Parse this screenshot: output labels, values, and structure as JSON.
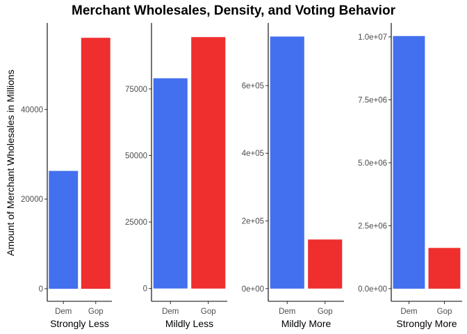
{
  "chart_data": {
    "type": "bar",
    "title": "Merchant Wholesales, Density, and Voting Behavior",
    "ylabel": "Amount of Merchant Wholesales in Millions",
    "colors": {
      "Dem": "#4370ee",
      "Gop": "#ef2e2e"
    },
    "panels": [
      {
        "xlabel": "Strongly Less",
        "categories": [
          "Dem",
          "Gop"
        ],
        "values": [
          26300,
          56000
        ],
        "ylim": [
          -2800,
          59300
        ],
        "ticks": [
          0,
          20000,
          40000
        ],
        "tick_labels": [
          "0",
          "20000",
          "40000"
        ]
      },
      {
        "xlabel": "Mildly Less",
        "categories": [
          "Dem",
          "Gop"
        ],
        "values": [
          79000,
          94500
        ],
        "ylim": [
          -4800,
          99800
        ],
        "ticks": [
          0,
          25000,
          50000,
          75000
        ],
        "tick_labels": [
          "0",
          "25000",
          "50000",
          "75000"
        ]
      },
      {
        "xlabel": "Mildly More",
        "categories": [
          "Dem",
          "Gop"
        ],
        "values": [
          745000,
          145000
        ],
        "ylim": [
          -37500,
          785000
        ],
        "ticks": [
          0,
          200000,
          400000,
          600000
        ],
        "tick_labels": [
          "0e+00",
          "2e+05",
          "4e+05",
          "6e+05"
        ]
      },
      {
        "xlabel": "Strongly More",
        "categories": [
          "Dem",
          "Gop"
        ],
        "values": [
          10030000,
          1620000
        ],
        "ylim": [
          -500000,
          10550000
        ],
        "ticks": [
          0,
          2500000,
          5000000,
          7500000,
          10000000
        ],
        "tick_labels": [
          "0.0e+00",
          "2.5e+06",
          "5.0e+06",
          "7.5e+06",
          "1.0e+07"
        ]
      }
    ]
  }
}
